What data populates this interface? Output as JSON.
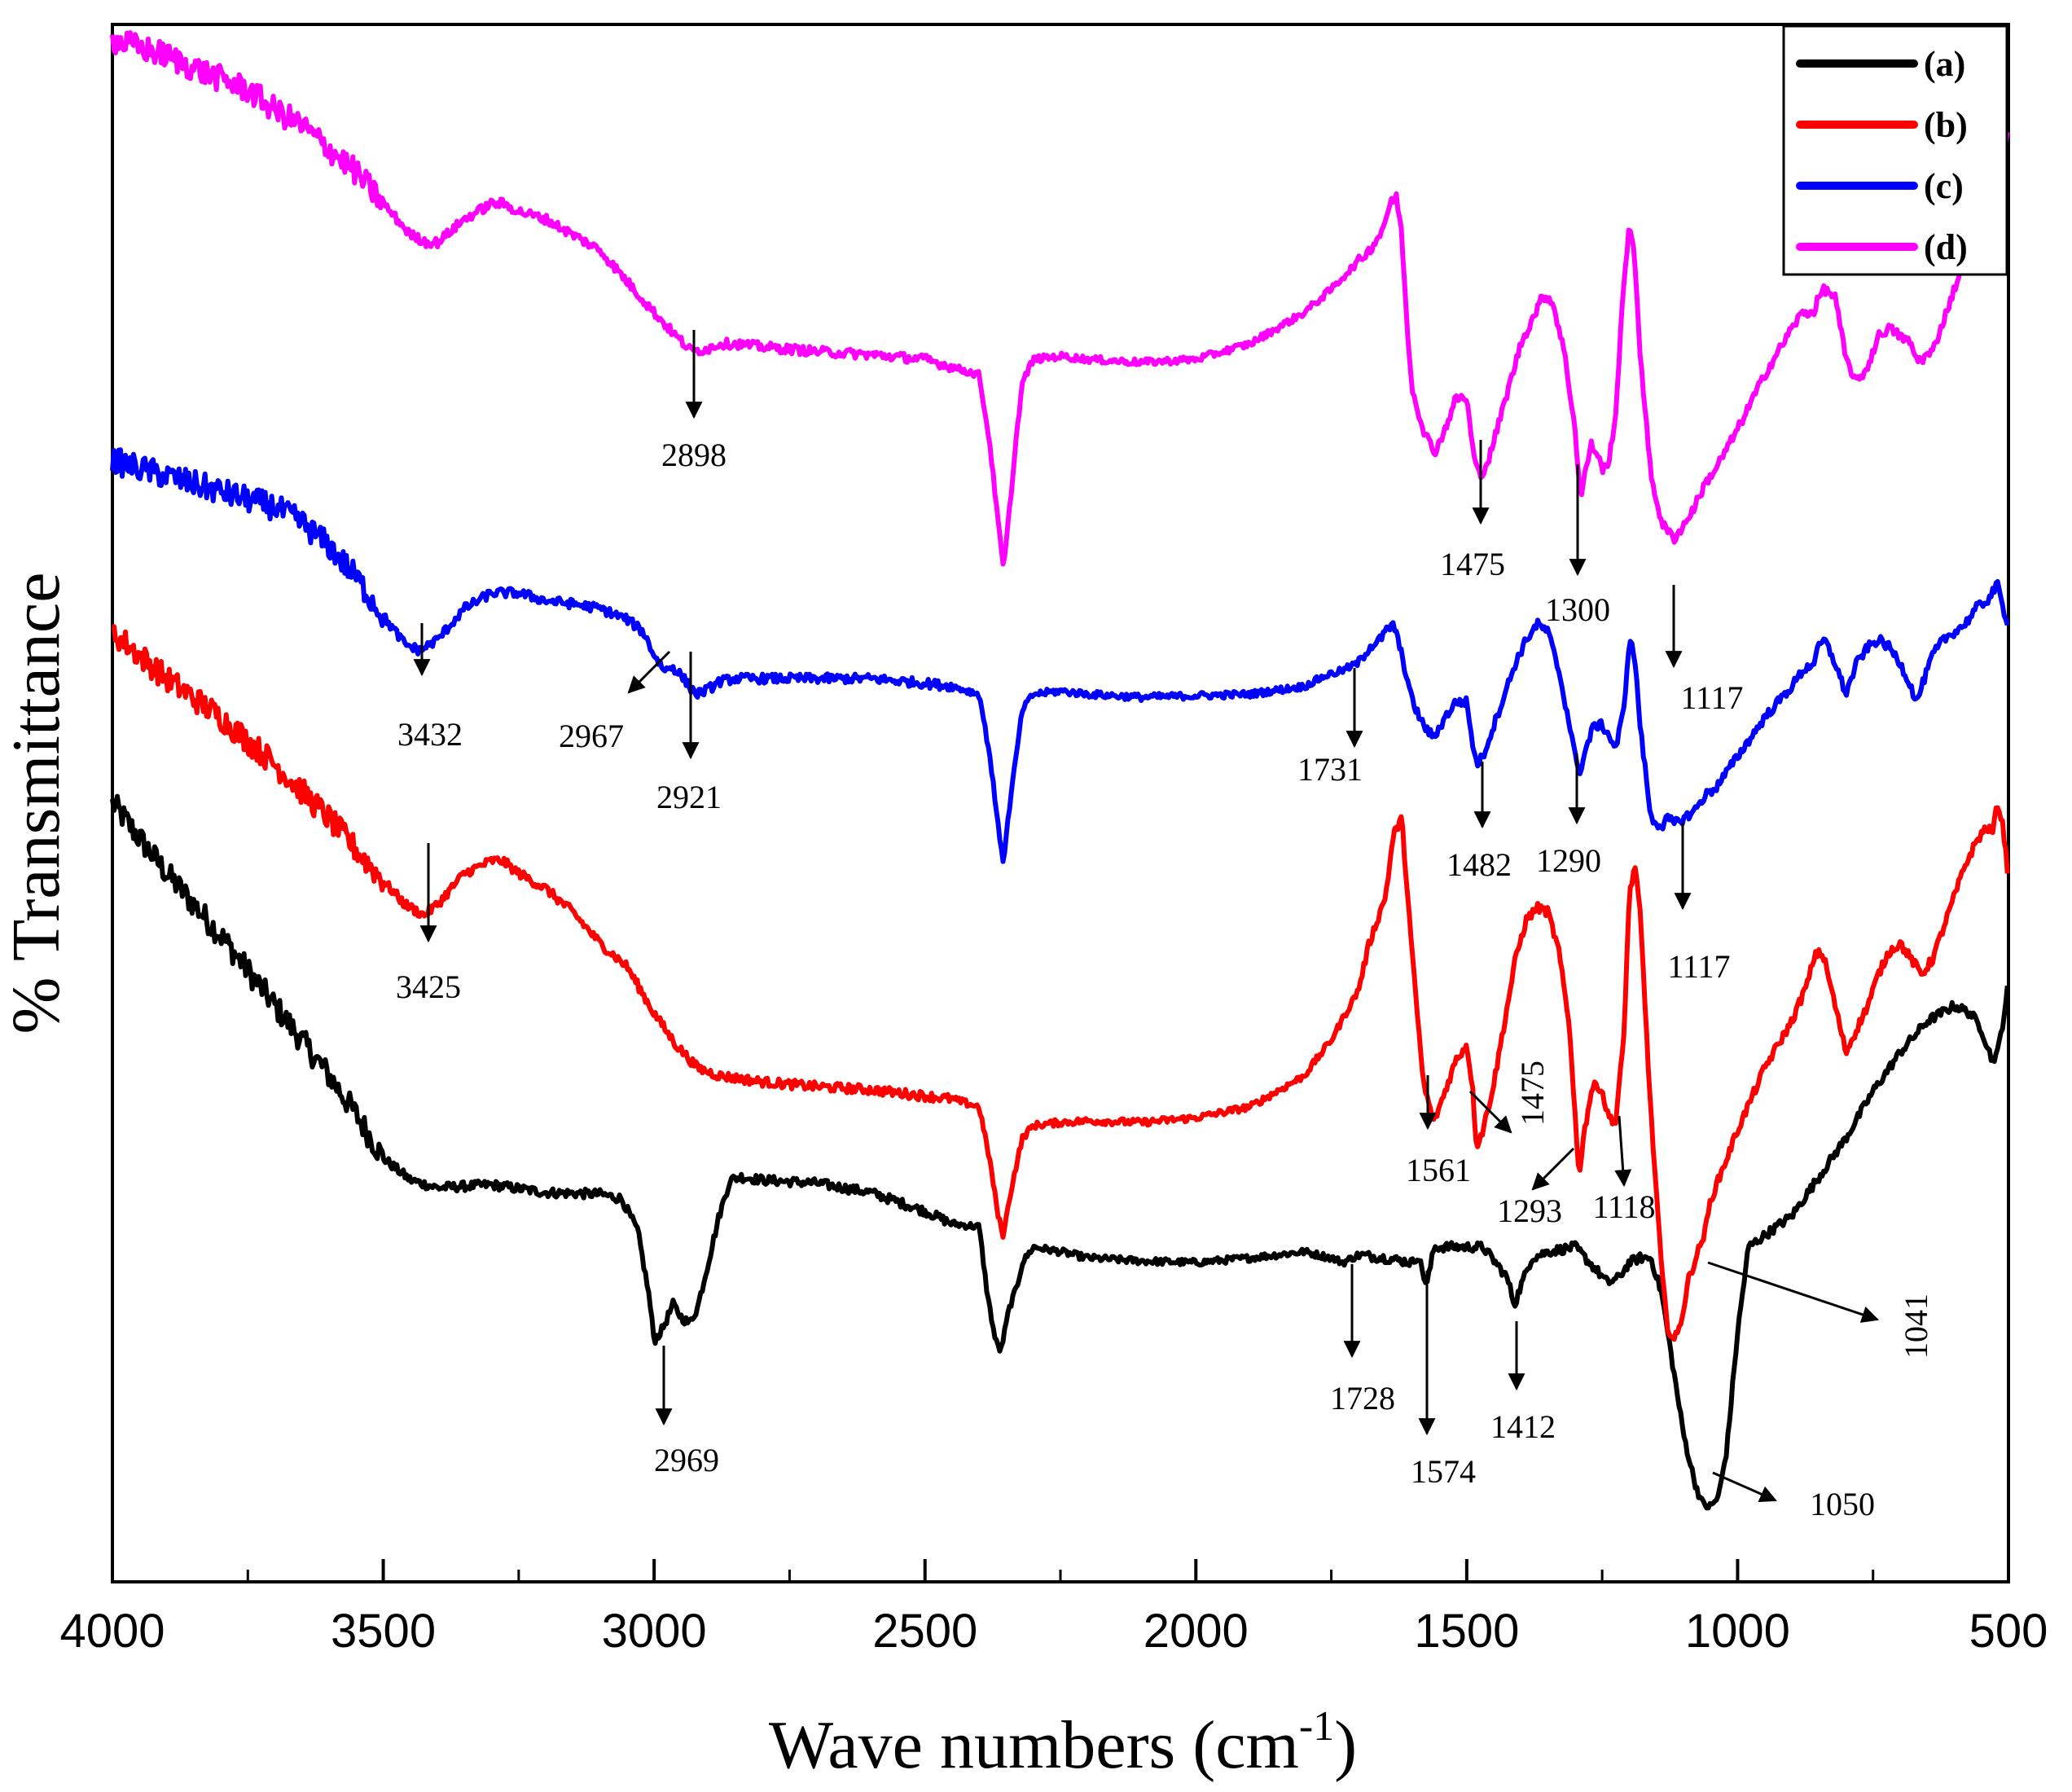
{
  "chart_data": {
    "type": "line",
    "title": "",
    "xlabel": "Wave numbers (cm",
    "xlabel_sup": "-1",
    "xlabel_end": ")",
    "ylabel": "% Transmittance",
    "xlim": [
      4000,
      500
    ],
    "ylim": [
      0,
      100
    ],
    "x_ticks": [
      4000,
      3500,
      3000,
      2500,
      2000,
      1500,
      1000,
      500
    ],
    "x_tick_labels": [
      "4000",
      "3500",
      "3000",
      "2500",
      "2000",
      "1500",
      "1000",
      "500"
    ],
    "grid": false,
    "legend_position": "top-right",
    "series": [
      {
        "name": "(a)",
        "color": "#000000",
        "x": [
          4000,
          3900,
          3800,
          3700,
          3600,
          3550,
          3500,
          3450,
          3400,
          3300,
          3200,
          3100,
          3060,
          3030,
          3010,
          3000,
          2985,
          2965,
          2950,
          2935,
          2920,
          2900,
          2880,
          2860,
          2840,
          2800,
          2700,
          2600,
          2500,
          2450,
          2400,
          2385,
          2370,
          2360,
          2345,
          2330,
          2320,
          2300,
          2250,
          2200,
          2100,
          2000,
          1900,
          1800,
          1750,
          1728,
          1700,
          1650,
          1600,
          1590,
          1574,
          1560,
          1540,
          1500,
          1470,
          1440,
          1425,
          1412,
          1400,
          1380,
          1350,
          1300,
          1260,
          1240,
          1220,
          1200,
          1180,
          1160,
          1140,
          1120,
          1100,
          1080,
          1065,
          1050,
          1035,
          1020,
          1000,
          980,
          960,
          900,
          850,
          800,
          750,
          700,
          650,
          600,
          570,
          550,
          530,
          520,
          510,
          500
        ],
        "y": [
          50.0,
          45.5,
          41.5,
          37.0,
          32.5,
          30.0,
          27.2,
          25.8,
          25.3,
          25.5,
          25.0,
          24.9,
          24.6,
          22.5,
          18.5,
          15.5,
          16.2,
          17.8,
          17.0,
          16.6,
          17.6,
          20.5,
          23.5,
          25.8,
          26.0,
          25.8,
          25.6,
          25.0,
          23.8,
          23.0,
          22.8,
          18.5,
          15.5,
          14.8,
          17.5,
          19.0,
          20.5,
          21.5,
          21.2,
          20.8,
          20.6,
          20.5,
          20.8,
          21.2,
          20.8,
          20.5,
          21.0,
          20.8,
          20.5,
          21.0,
          19.0,
          21.5,
          21.5,
          21.5,
          21.5,
          20.2,
          19.5,
          17.8,
          19.0,
          20.8,
          21.2,
          21.5,
          20.0,
          19.2,
          19.5,
          20.5,
          20.8,
          20.8,
          18.5,
          14.0,
          9.5,
          6.5,
          5.0,
          4.8,
          5.5,
          8.5,
          16.0,
          21.5,
          22.0,
          23.5,
          26.0,
          28.5,
          31.5,
          34.0,
          36.0,
          37.0,
          36.5,
          35.5,
          33.5,
          34.0,
          36.0,
          38.5
        ]
      },
      {
        "name": "(b)",
        "color": "#ff0000",
        "x": [
          4000,
          3900,
          3800,
          3700,
          3600,
          3550,
          3500,
          3460,
          3425,
          3400,
          3350,
          3300,
          3280,
          3250,
          3200,
          3150,
          3100,
          3050,
          3000,
          2960,
          2920,
          2880,
          2840,
          2800,
          2700,
          2600,
          2500,
          2450,
          2400,
          2380,
          2365,
          2355,
          2345,
          2330,
          2320,
          2300,
          2250,
          2200,
          2100,
          2000,
          1900,
          1800,
          1750,
          1700,
          1680,
          1650,
          1635,
          1620,
          1600,
          1580,
          1561,
          1540,
          1520,
          1500,
          1490,
          1482,
          1470,
          1450,
          1430,
          1410,
          1390,
          1370,
          1350,
          1330,
          1310,
          1300,
          1293,
          1285,
          1270,
          1260,
          1250,
          1240,
          1225,
          1210,
          1200,
          1190,
          1180,
          1160,
          1140,
          1130,
          1118,
          1110,
          1100,
          1090,
          1060,
          1050,
          1000,
          950,
          900,
          870,
          860,
          850,
          840,
          820,
          800,
          780,
          760,
          740,
          720,
          700,
          680,
          660,
          640,
          620,
          600,
          580,
          560,
          540,
          530,
          520,
          510,
          500
        ],
        "y": [
          61.0,
          58.0,
          55.5,
          52.5,
          49.0,
          47.0,
          45.0,
          43.5,
          42.8,
          43.5,
          45.5,
          46.3,
          46.3,
          45.5,
          44.5,
          43.0,
          41.0,
          39.5,
          36.5,
          34.5,
          33.0,
          32.5,
          32.3,
          32.1,
          31.8,
          31.6,
          31.2,
          31.0,
          30.5,
          27.0,
          23.5,
          22.2,
          24.5,
          27.0,
          28.5,
          29.3,
          29.5,
          29.6,
          29.5,
          29.8,
          30.5,
          32.5,
          34.8,
          38.0,
          41.0,
          44.0,
          48.0,
          49.0,
          40.0,
          32.0,
          29.5,
          31.5,
          33.5,
          34.5,
          32.0,
          28.0,
          29.0,
          32.0,
          36.0,
          40.0,
          42.5,
          43.3,
          43.0,
          40.5,
          35.5,
          30.0,
          26.0,
          28.5,
          31.5,
          32.0,
          31.5,
          30.0,
          29.5,
          35.0,
          44.0,
          46.0,
          43.0,
          30.0,
          20.0,
          16.5,
          15.5,
          16.0,
          17.5,
          19.5,
          22.5,
          24.5,
          29.0,
          33.0,
          36.0,
          38.5,
          40.0,
          40.5,
          40.0,
          37.0,
          34.0,
          35.5,
          37.0,
          39.0,
          40.5,
          41.0,
          40.0,
          39.0,
          40.0,
          42.0,
          44.0,
          46.0,
          47.5,
          48.5,
          48.0,
          50.0,
          48.5,
          45.0
        ]
      },
      {
        "name": "(c)",
        "color": "#0000ff",
        "x": [
          4000,
          3900,
          3800,
          3700,
          3650,
          3600,
          3550,
          3500,
          3460,
          3432,
          3400,
          3350,
          3300,
          3250,
          3200,
          3150,
          3100,
          3050,
          3020,
          3000,
          2980,
          2967,
          2950,
          2935,
          2921,
          2900,
          2880,
          2850,
          2800,
          2700,
          2600,
          2500,
          2450,
          2400,
          2380,
          2365,
          2355,
          2345,
          2330,
          2320,
          2300,
          2250,
          2200,
          2100,
          2000,
          1900,
          1800,
          1760,
          1731,
          1700,
          1680,
          1660,
          1650,
          1635,
          1620,
          1600,
          1580,
          1561,
          1540,
          1520,
          1500,
          1490,
          1482,
          1470,
          1450,
          1430,
          1410,
          1390,
          1370,
          1350,
          1330,
          1310,
          1300,
          1290,
          1280,
          1265,
          1250,
          1240,
          1225,
          1210,
          1200,
          1190,
          1180,
          1160,
          1140,
          1130,
          1117,
          1100,
          1080,
          1060,
          1040,
          1000,
          950,
          900,
          880,
          860,
          850,
          840,
          820,
          800,
          780,
          760,
          740,
          720,
          700,
          680,
          670,
          660,
          640,
          620,
          600,
          580,
          560,
          540,
          530,
          520,
          510,
          500
        ],
        "y": [
          72.0,
          71.0,
          70.0,
          69.0,
          68.0,
          66.5,
          64.5,
          62.0,
          60.2,
          59.8,
          60.5,
          62.5,
          63.5,
          63.5,
          63.0,
          62.8,
          62.5,
          61.8,
          61.0,
          59.5,
          58.5,
          58.8,
          58.2,
          57.5,
          57.0,
          57.3,
          57.8,
          58.0,
          58.0,
          58.0,
          58.0,
          57.7,
          57.5,
          57.0,
          53.0,
          48.5,
          46.2,
          49.5,
          53.5,
          56.0,
          57.0,
          57.2,
          57.0,
          56.8,
          56.9,
          57.0,
          57.5,
          58.2,
          58.5,
          59.0,
          60.0,
          60.5,
          61.0,
          61.5,
          59.5,
          56.5,
          55.0,
          54.2,
          55.5,
          56.5,
          56.5,
          54.0,
          52.5,
          53.0,
          55.0,
          57.0,
          59.0,
          60.5,
          61.5,
          61.0,
          58.5,
          55.0,
          53.0,
          52.0,
          53.5,
          55.0,
          55.0,
          54.5,
          53.5,
          56.0,
          60.5,
          59.5,
          55.0,
          49.0,
          48.5,
          49.0,
          48.7,
          49.0,
          49.5,
          50.5,
          51.0,
          53.0,
          55.5,
          57.5,
          58.5,
          59.0,
          60.0,
          60.5,
          59.0,
          57.0,
          59.0,
          60.0,
          60.5,
          60.0,
          59.0,
          57.5,
          56.5,
          57.5,
          59.5,
          60.5,
          61.0,
          61.5,
          62.5,
          63.0,
          63.5,
          64.0,
          62.5,
          61.5
        ]
      },
      {
        "name": "(d)",
        "color": "#ff00ff",
        "x": [
          4000,
          3950,
          3900,
          3850,
          3800,
          3750,
          3700,
          3650,
          3600,
          3550,
          3500,
          3450,
          3420,
          3400,
          3350,
          3300,
          3280,
          3250,
          3200,
          3150,
          3100,
          3050,
          3000,
          2960,
          2930,
          2898,
          2880,
          2850,
          2800,
          2700,
          2600,
          2500,
          2450,
          2400,
          2380,
          2365,
          2355,
          2345,
          2330,
          2320,
          2300,
          2250,
          2200,
          2100,
          2000,
          1950,
          1900,
          1850,
          1800,
          1750,
          1700,
          1680,
          1660,
          1650,
          1640,
          1630,
          1620,
          1610,
          1600,
          1580,
          1560,
          1540,
          1520,
          1500,
          1490,
          1482,
          1475,
          1460,
          1440,
          1420,
          1400,
          1380,
          1360,
          1350,
          1340,
          1320,
          1300,
          1290,
          1280,
          1270,
          1260,
          1250,
          1240,
          1225,
          1210,
          1200,
          1190,
          1180,
          1160,
          1140,
          1130,
          1117,
          1100,
          1080,
          1060,
          1040,
          1000,
          950,
          900,
          880,
          860,
          850,
          840,
          820,
          800,
          780,
          760,
          740,
          720,
          700,
          680,
          670,
          660,
          640,
          620,
          600,
          580,
          560,
          540,
          530,
          520,
          510,
          500
        ],
        "y": [
          99.0,
          98.5,
          98.0,
          97.2,
          96.5,
          95.8,
          94.5,
          93.5,
          92.0,
          90.5,
          88.5,
          86.5,
          86.0,
          86.0,
          87.5,
          88.5,
          88.5,
          88.0,
          87.5,
          86.5,
          85.5,
          83.5,
          81.5,
          80.0,
          79.0,
          79.2,
          79.5,
          79.5,
          79.3,
          79.0,
          78.8,
          78.5,
          78.0,
          77.5,
          73.0,
          68.0,
          65.0,
          68.5,
          74.0,
          77.0,
          78.5,
          78.7,
          78.5,
          78.3,
          78.5,
          79.0,
          79.5,
          80.5,
          81.5,
          83.0,
          84.8,
          85.5,
          86.5,
          87.5,
          88.5,
          89.0,
          86.5,
          80.5,
          76.5,
          74.0,
          72.5,
          74.0,
          76.0,
          76.0,
          73.0,
          71.5,
          71.0,
          72.0,
          74.5,
          77.0,
          79.5,
          81.0,
          82.5,
          82.5,
          82.0,
          79.0,
          74.0,
          69.5,
          71.5,
          73.0,
          72.5,
          71.5,
          71.5,
          75.0,
          83.5,
          87.0,
          85.0,
          79.0,
          71.0,
          68.0,
          67.5,
          67.0,
          67.8,
          69.0,
          70.5,
          71.5,
          74.0,
          77.5,
          80.5,
          81.5,
          81.5,
          82.5,
          83.0,
          82.5,
          78.5,
          77.0,
          78.0,
          80.0,
          80.5,
          80.0,
          79.5,
          78.5,
          78.5,
          79.0,
          81.0,
          83.0,
          85.0,
          87.0,
          89.0,
          90.5,
          91.0,
          92.5,
          93.0
        ]
      }
    ],
    "annotations": [
      {
        "series": "(d)",
        "label": "2898"
      },
      {
        "series": "(d)",
        "label": "1475"
      },
      {
        "series": "(d)",
        "label": "1300"
      },
      {
        "series": "(d)",
        "label": "1117"
      },
      {
        "series": "(c)",
        "label": "3432"
      },
      {
        "series": "(c)",
        "label": "2967"
      },
      {
        "series": "(c)",
        "label": "2921"
      },
      {
        "series": "(c)",
        "label": "1731"
      },
      {
        "series": "(c)",
        "label": "1482"
      },
      {
        "series": "(c)",
        "label": "1290"
      },
      {
        "series": "(c)",
        "label": "1117"
      },
      {
        "series": "(b)",
        "label": "3425"
      },
      {
        "series": "(b)",
        "label": "1561"
      },
      {
        "series": "(b)",
        "label": "1475"
      },
      {
        "series": "(b)",
        "label": "1293"
      },
      {
        "series": "(b)",
        "label": "1118"
      },
      {
        "series": "(b)",
        "label": "1041"
      },
      {
        "series": "(a)",
        "label": "2969"
      },
      {
        "series": "(a)",
        "label": "1728"
      },
      {
        "series": "(a)",
        "label": "1574"
      },
      {
        "series": "(a)",
        "label": "1412"
      },
      {
        "series": "(a)",
        "label": "1050"
      }
    ]
  }
}
